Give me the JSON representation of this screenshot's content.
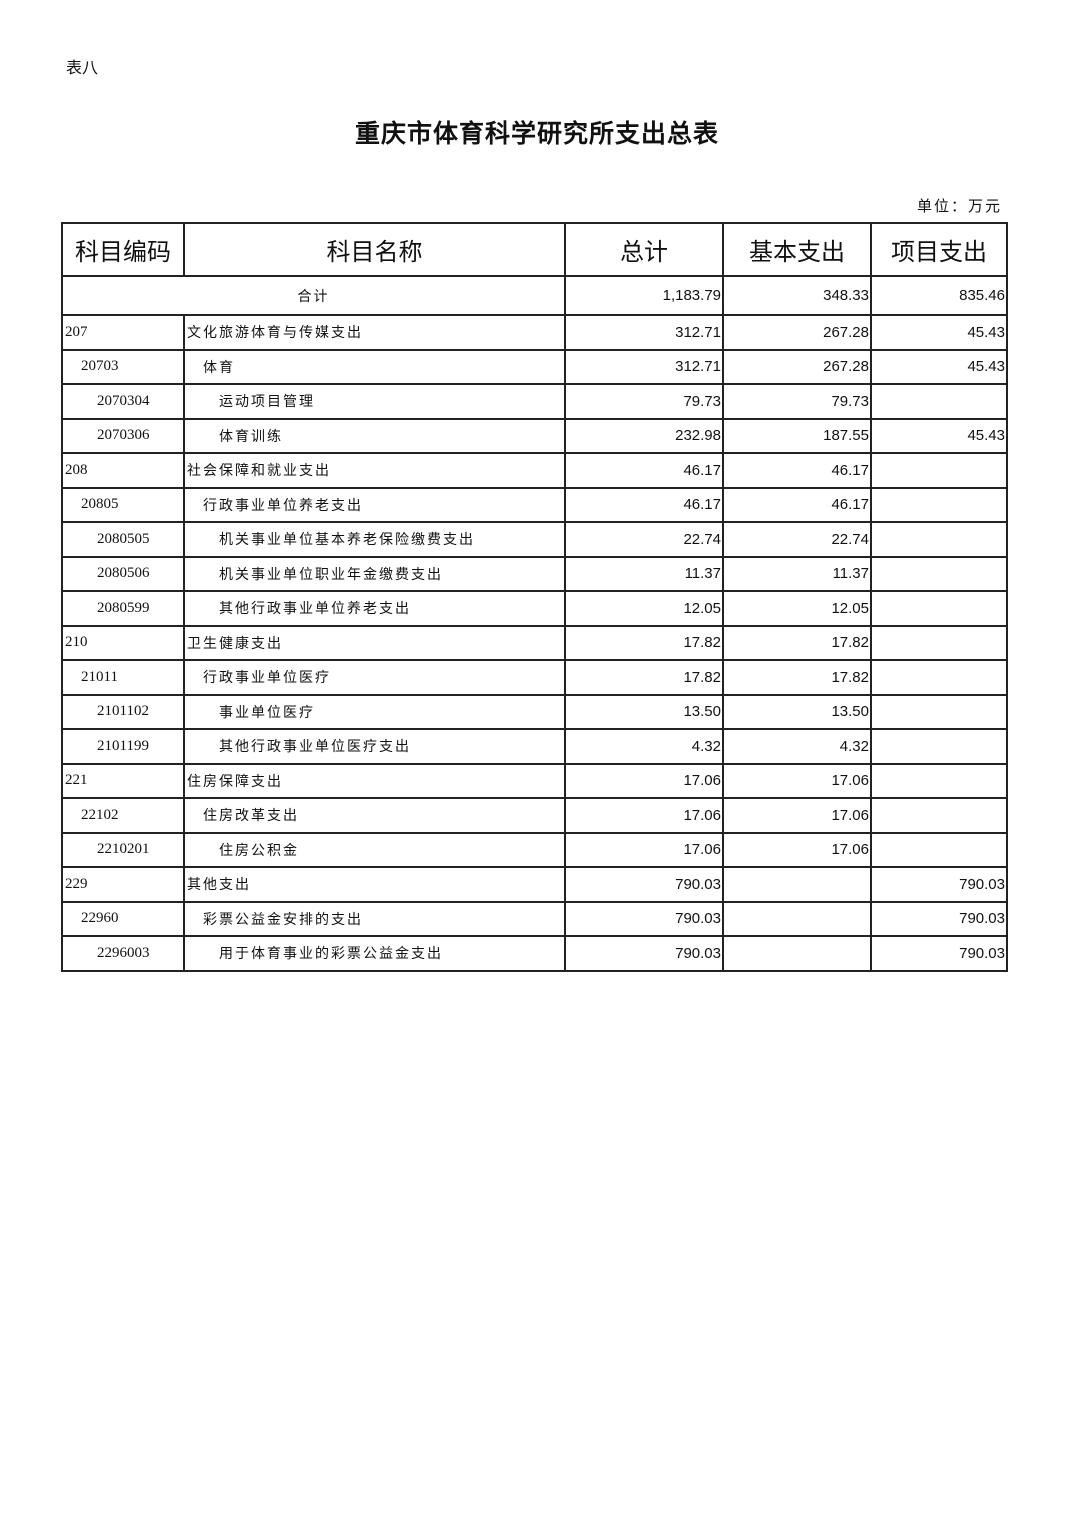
{
  "table_label": "表八",
  "title": "重庆市体育科学研究所支出总表",
  "unit": "单位：万元",
  "headers": [
    "科目编码",
    "科目名称",
    "总计",
    "基本支出",
    "项目支出"
  ],
  "total": {
    "label": "合计",
    "total": "1,183.79",
    "basic": "348.33",
    "project": "835.46"
  },
  "rows": [
    {
      "level": 0,
      "code": "207",
      "name": "文化旅游体育与传媒支出",
      "total": "312.71",
      "basic": "267.28",
      "project": "45.43"
    },
    {
      "level": 1,
      "code": "20703",
      "name": "体育",
      "total": "312.71",
      "basic": "267.28",
      "project": "45.43"
    },
    {
      "level": 2,
      "code": "2070304",
      "name": "运动项目管理",
      "total": "79.73",
      "basic": "79.73",
      "project": ""
    },
    {
      "level": 2,
      "code": "2070306",
      "name": "体育训练",
      "total": "232.98",
      "basic": "187.55",
      "project": "45.43"
    },
    {
      "level": 0,
      "code": "208",
      "name": "社会保障和就业支出",
      "total": "46.17",
      "basic": "46.17",
      "project": ""
    },
    {
      "level": 1,
      "code": "20805",
      "name": "行政事业单位养老支出",
      "total": "46.17",
      "basic": "46.17",
      "project": ""
    },
    {
      "level": 2,
      "code": "2080505",
      "name": "机关事业单位基本养老保险缴费支出",
      "total": "22.74",
      "basic": "22.74",
      "project": ""
    },
    {
      "level": 2,
      "code": "2080506",
      "name": "机关事业单位职业年金缴费支出",
      "total": "11.37",
      "basic": "11.37",
      "project": ""
    },
    {
      "level": 2,
      "code": "2080599",
      "name": "其他行政事业单位养老支出",
      "total": "12.05",
      "basic": "12.05",
      "project": ""
    },
    {
      "level": 0,
      "code": "210",
      "name": "卫生健康支出",
      "total": "17.82",
      "basic": "17.82",
      "project": ""
    },
    {
      "level": 1,
      "code": "21011",
      "name": "行政事业单位医疗",
      "total": "17.82",
      "basic": "17.82",
      "project": ""
    },
    {
      "level": 2,
      "code": "2101102",
      "name": "事业单位医疗",
      "total": "13.50",
      "basic": "13.50",
      "project": ""
    },
    {
      "level": 2,
      "code": "2101199",
      "name": "其他行政事业单位医疗支出",
      "total": "4.32",
      "basic": "4.32",
      "project": ""
    },
    {
      "level": 0,
      "code": "221",
      "name": "住房保障支出",
      "total": "17.06",
      "basic": "17.06",
      "project": ""
    },
    {
      "level": 1,
      "code": "22102",
      "name": "住房改革支出",
      "total": "17.06",
      "basic": "17.06",
      "project": ""
    },
    {
      "level": 2,
      "code": "2210201",
      "name": "住房公积金",
      "total": "17.06",
      "basic": "17.06",
      "project": ""
    },
    {
      "level": 0,
      "code": "229",
      "name": "其他支出",
      "total": "790.03",
      "basic": "",
      "project": "790.03"
    },
    {
      "level": 1,
      "code": "22960",
      "name": "彩票公益金安排的支出",
      "total": "790.03",
      "basic": "",
      "project": "790.03"
    },
    {
      "level": 2,
      "code": "2296003",
      "name": "用于体育事业的彩票公益金支出",
      "total": "790.03",
      "basic": "",
      "project": "790.03"
    }
  ]
}
